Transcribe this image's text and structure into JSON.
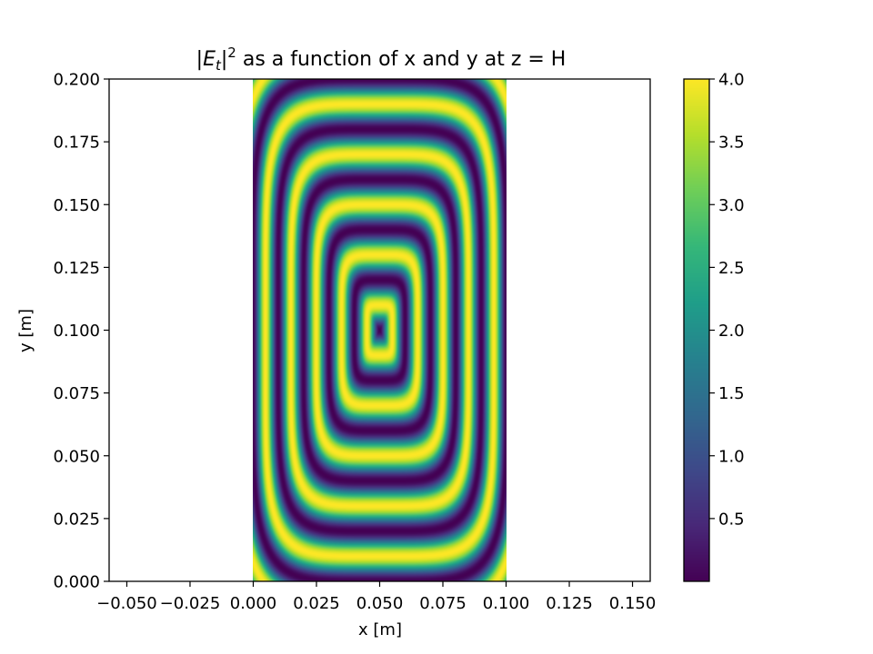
{
  "chart_data": {
    "type": "heatmap",
    "title": "|E_t|² as a function of x and y at z = H",
    "title_parts": {
      "open_bar": "|",
      "e": "E",
      "sub": "t",
      "close_bar": "|",
      "sup": "2",
      "rest": " as a function of x and y at z = H"
    },
    "xlabel": "x [m]",
    "ylabel": "y [m]",
    "xlim": [
      -0.057,
      0.157
    ],
    "ylim": [
      0.0,
      0.2
    ],
    "xticks": [
      -0.05,
      -0.025,
      0.0,
      0.025,
      0.05,
      0.075,
      0.1,
      0.125,
      0.15
    ],
    "xtick_labels": [
      "−0.050",
      "−0.025",
      "0.000",
      "0.025",
      "0.050",
      "0.075",
      "0.100",
      "0.125",
      "0.150"
    ],
    "yticks": [
      0.0,
      0.025,
      0.05,
      0.075,
      0.1,
      0.125,
      0.15,
      0.175,
      0.2
    ],
    "ytick_labels": [
      "0.000",
      "0.025",
      "0.050",
      "0.075",
      "0.100",
      "0.125",
      "0.150",
      "0.175",
      "0.200"
    ],
    "data_extent": {
      "x": [
        0.0,
        0.1
      ],
      "y": [
        0.0,
        0.2
      ]
    },
    "field": "E_t_squared",
    "value_range": [
      0.0,
      4.0
    ],
    "colormap": "viridis",
    "colorbar": {
      "ticks": [
        0.5,
        1.0,
        1.5,
        2.0,
        2.5,
        3.0,
        3.5,
        4.0
      ],
      "tick_labels": [
        "0.5",
        "1.0",
        "1.5",
        "2.0",
        "2.5",
        "3.0",
        "3.5",
        "4.0"
      ],
      "range": [
        0.0,
        4.0
      ]
    }
  }
}
